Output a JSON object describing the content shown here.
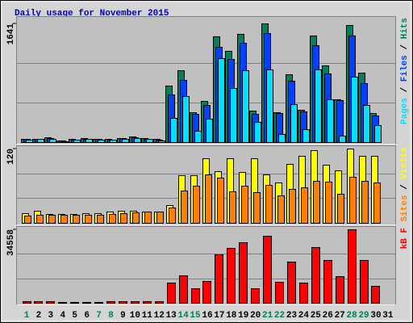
{
  "chart_data": [
    {
      "type": "bar",
      "title": "Daily usage for November 2015",
      "ylim": [
        0,
        1641
      ],
      "yticks": [
        1641
      ],
      "grid_divisions": 3,
      "legend_separator": " / ",
      "series": [
        {
          "name": "Hits",
          "color": "#00805c",
          "values": [
            45,
            50,
            65,
            25,
            40,
            55,
            45,
            40,
            60,
            75,
            55,
            40,
            781,
            994,
            413,
            569,
            1462,
            1261,
            1496,
            435,
            1641,
            413,
            938,
            447,
            1474,
            1060,
            592,
            1619,
            960,
            402,
            0
          ]
        },
        {
          "name": "Files",
          "color": "#0040ff",
          "values": [
            40,
            45,
            60,
            20,
            35,
            50,
            40,
            35,
            55,
            70,
            50,
            35,
            659,
            860,
            391,
            513,
            1317,
            1150,
            1373,
            391,
            1507,
            402,
            848,
            424,
            1340,
            949,
            580,
            1474,
            815,
            368,
            0
          ]
        },
        {
          "name": "Pages",
          "color": "#00e0ff",
          "values": [
            35,
            40,
            50,
            15,
            30,
            45,
            35,
            30,
            45,
            60,
            40,
            25,
            335,
            636,
            156,
            324,
            1161,
            748,
            994,
            279,
            1005,
            112,
            525,
            179,
            1005,
            592,
            89,
            904,
            513,
            234,
            0
          ]
        }
      ]
    },
    {
      "type": "bar",
      "ylim": [
        0,
        120
      ],
      "yticks": [
        120
      ],
      "grid_divisions": 3,
      "legend_separator": " / ",
      "series": [
        {
          "name": "Visits",
          "color": "#ffff00",
          "values": [
            16,
            20,
            14,
            14,
            14,
            16,
            16,
            18,
            20,
            20,
            18,
            18,
            29,
            77,
            77,
            104,
            83,
            104,
            82,
            104,
            78,
            65,
            95,
            108,
            117,
            94,
            85,
            120,
            108,
            108,
            0
          ]
        },
        {
          "name": "Sites",
          "color": "#ff8000",
          "values": [
            12,
            13,
            13,
            13,
            13,
            13,
            13,
            14,
            16,
            17,
            18,
            18,
            25,
            52,
            60,
            78,
            73,
            51,
            60,
            50,
            61,
            44,
            55,
            57,
            68,
            67,
            47,
            74,
            68,
            65,
            0
          ]
        }
      ]
    },
    {
      "type": "bar",
      "ylim": [
        0,
        34558
      ],
      "yticks": [
        34558
      ],
      "grid_divisions": 3,
      "categories": [
        "1",
        "2",
        "3",
        "4",
        "5",
        "6",
        "7",
        "8",
        "9",
        "10",
        "11",
        "12",
        "13",
        "14",
        "15",
        "16",
        "17",
        "18",
        "19",
        "20",
        "21",
        "22",
        "23",
        "24",
        "25",
        "26",
        "27",
        "28",
        "29",
        "30",
        "31"
      ],
      "highlight": {
        "color": "#00805c",
        "categories": [
          "1",
          "7",
          "8",
          "14",
          "15",
          "21",
          "22",
          "28",
          "29"
        ]
      },
      "series": [
        {
          "name": "kB F",
          "color": "#ff0000",
          "values": [
            760,
            760,
            760,
            380,
            380,
            380,
            380,
            760,
            760,
            760,
            760,
            760,
            9494,
            12912,
            6836,
            10253,
            22786,
            25825,
            28483,
            6836,
            31521,
            9874,
            19368,
            9494,
            26204,
            20127,
            12532,
            34558,
            20127,
            7975,
            0
          ]
        }
      ]
    }
  ]
}
